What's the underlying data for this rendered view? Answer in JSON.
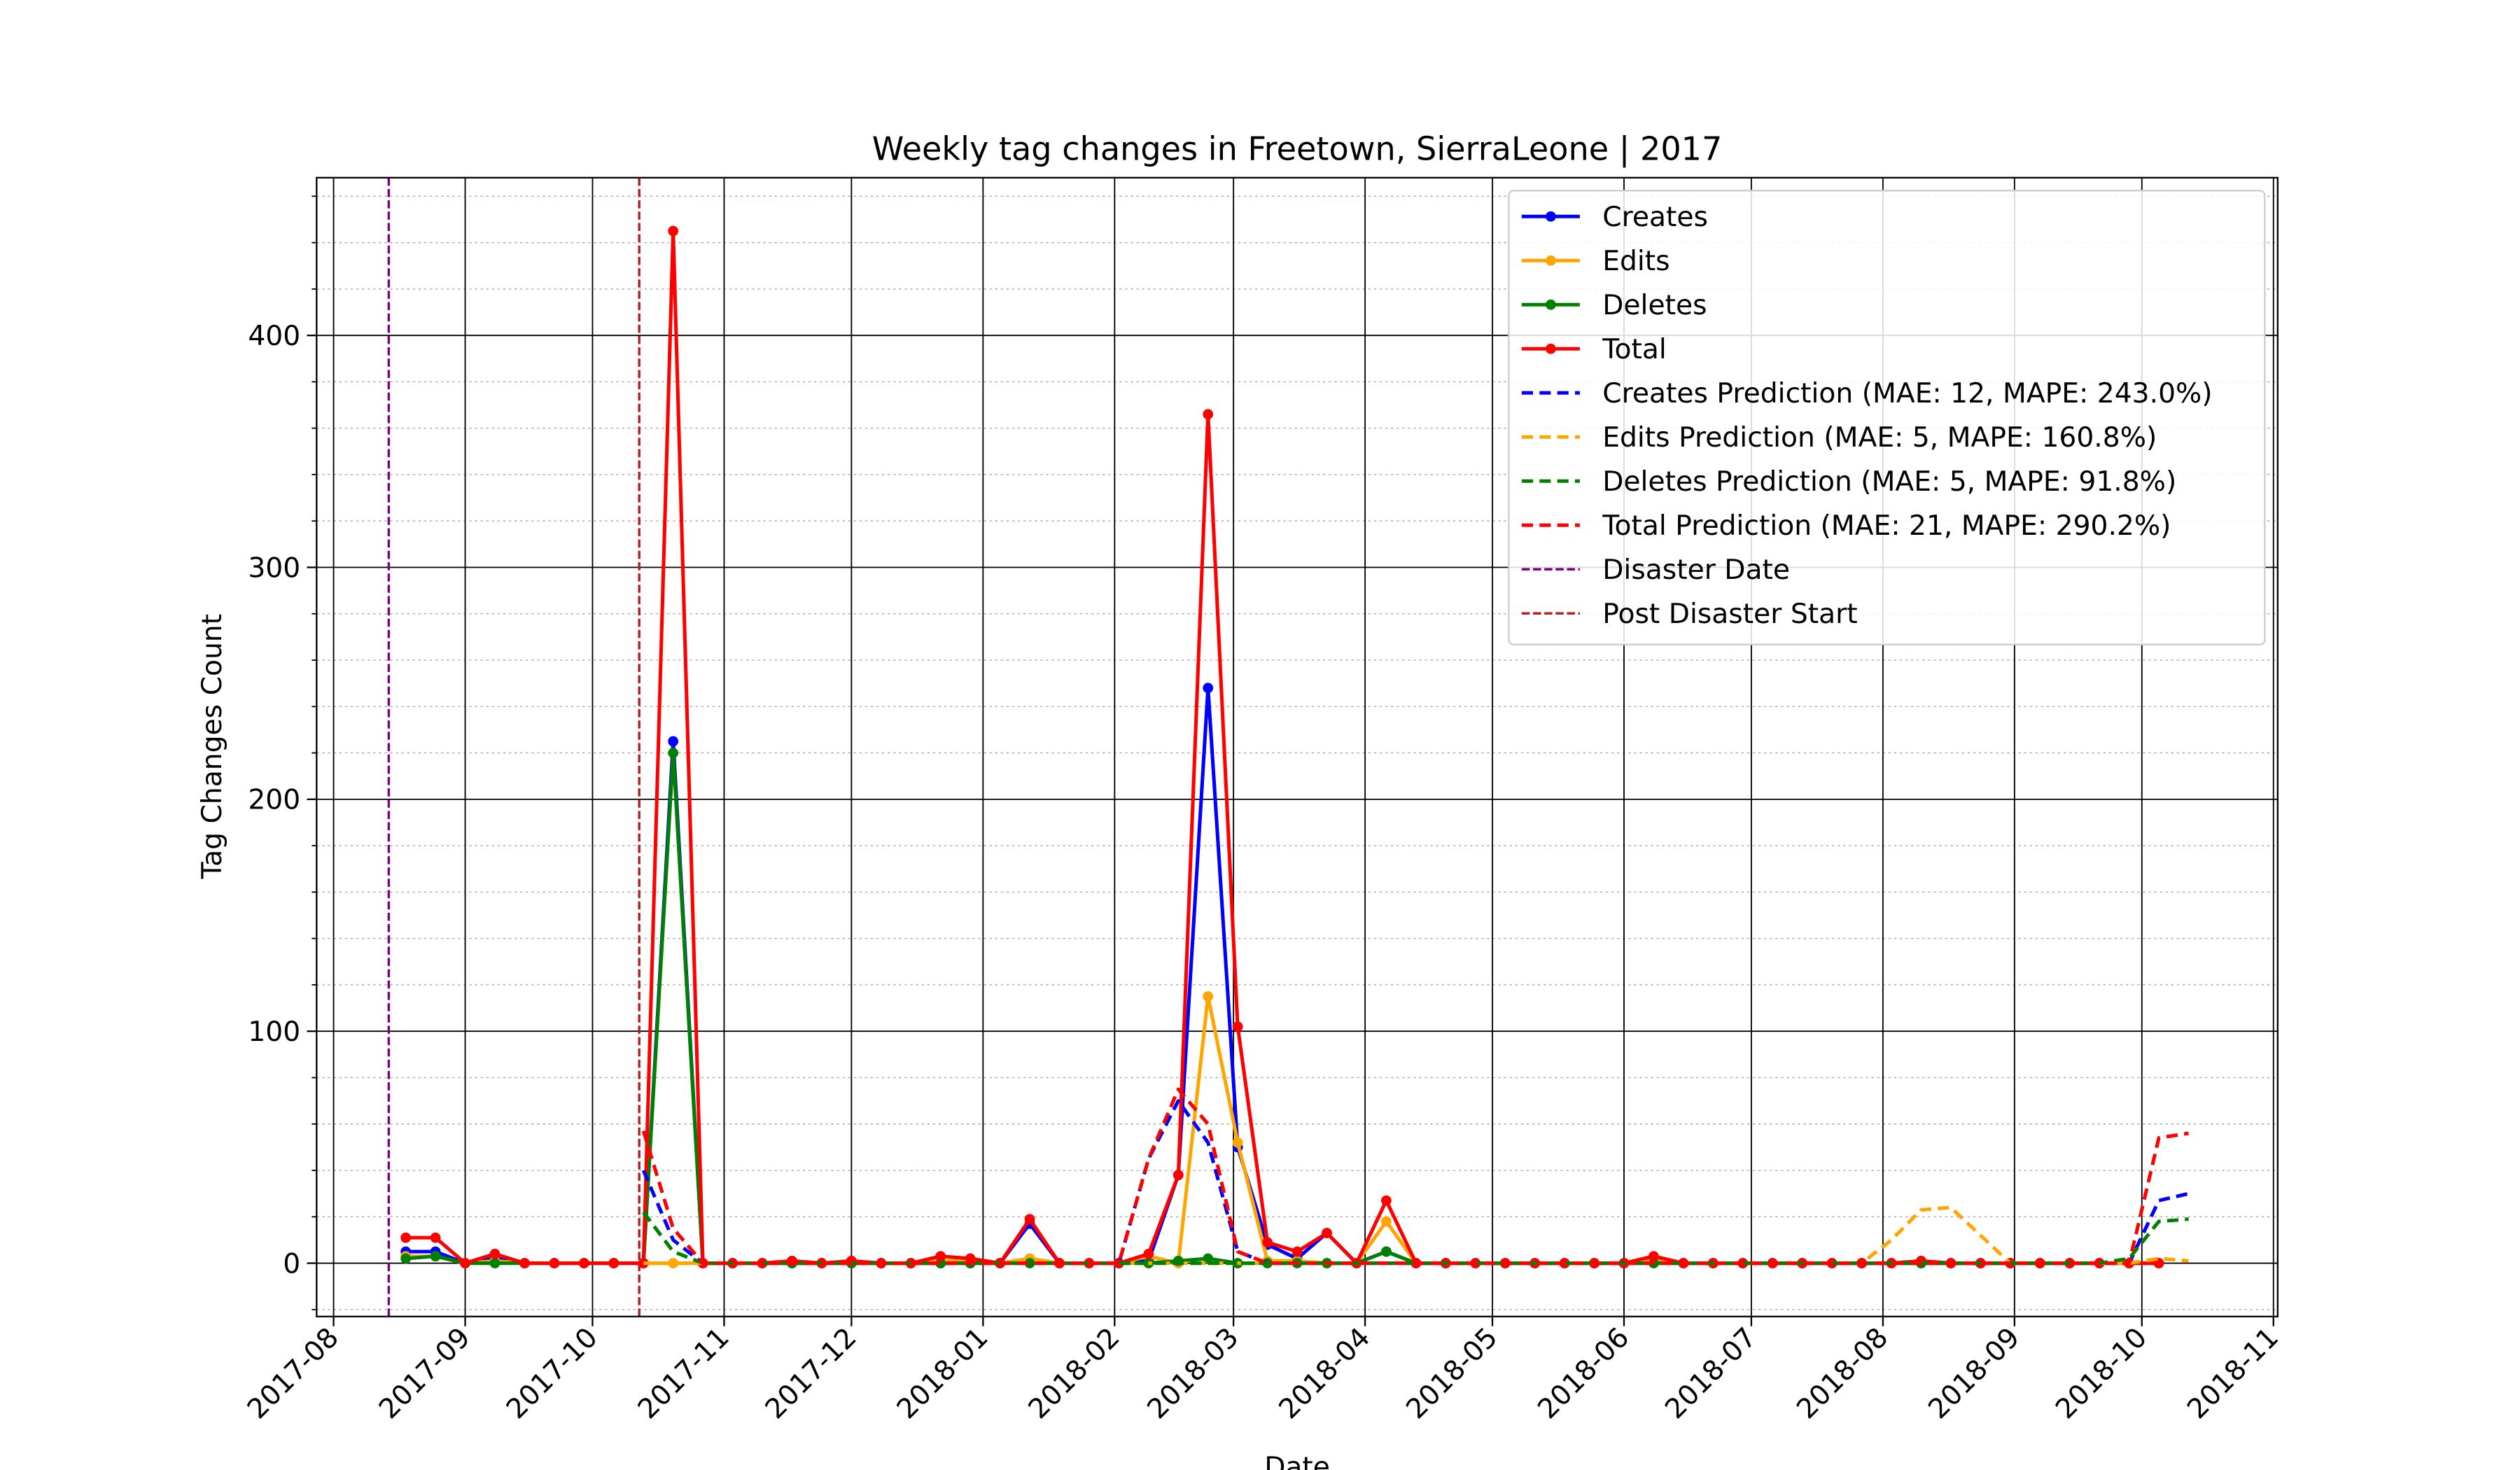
{
  "chart_data": {
    "type": "line",
    "title": "Weekly tag changes in Freetown, SierraLeone | 2017",
    "xlabel": "Date",
    "ylabel": "Tag Changes Count",
    "x": [
      "2017-08-18",
      "2017-08-25",
      "2017-09-01",
      "2017-09-08",
      "2017-09-15",
      "2017-09-22",
      "2017-09-29",
      "2017-10-06",
      "2017-10-13",
      "2017-10-20",
      "2017-10-27",
      "2017-11-03",
      "2017-11-10",
      "2017-11-17",
      "2017-11-24",
      "2017-12-01",
      "2017-12-08",
      "2017-12-15",
      "2017-12-22",
      "2017-12-29",
      "2018-01-05",
      "2018-01-12",
      "2018-01-19",
      "2018-01-26",
      "2018-02-02",
      "2018-02-09",
      "2018-02-16",
      "2018-02-23",
      "2018-03-02",
      "2018-03-09",
      "2018-03-16",
      "2018-03-23",
      "2018-03-30",
      "2018-04-06",
      "2018-04-13",
      "2018-04-20",
      "2018-04-27",
      "2018-05-04",
      "2018-05-11",
      "2018-05-18",
      "2018-05-25",
      "2018-06-01",
      "2018-06-08",
      "2018-06-15",
      "2018-06-22",
      "2018-06-29",
      "2018-07-06",
      "2018-07-13",
      "2018-07-20",
      "2018-07-27",
      "2018-08-03",
      "2018-08-10",
      "2018-08-17",
      "2018-08-24",
      "2018-08-31",
      "2018-09-07",
      "2018-09-14",
      "2018-09-21",
      "2018-09-28",
      "2018-10-05",
      "2018-10-12"
    ],
    "series": [
      {
        "name": "Creates",
        "color": "blue",
        "dashed": false,
        "marker": true,
        "values": [
          5,
          5,
          0,
          2,
          0,
          0,
          0,
          0,
          0,
          225,
          0,
          0,
          0,
          0,
          0,
          0,
          0,
          0,
          0,
          0,
          0,
          17,
          0,
          0,
          0,
          1,
          38,
          248,
          50,
          8,
          2,
          13,
          0,
          5,
          0,
          0,
          0,
          0,
          0,
          0,
          0,
          0,
          2,
          0,
          0,
          0,
          0,
          0,
          0,
          0,
          0,
          0,
          0,
          0,
          0,
          0,
          0,
          0,
          0,
          0,
          null
        ]
      },
      {
        "name": "Edits",
        "color": "orange",
        "dashed": false,
        "marker": true,
        "values": [
          3,
          3,
          0,
          1,
          0,
          0,
          0,
          0,
          0,
          0,
          0,
          0,
          0,
          0,
          0,
          0,
          0,
          0,
          1,
          1,
          0,
          2,
          0,
          0,
          0,
          3,
          0,
          115,
          52,
          1,
          1,
          0,
          0,
          18,
          0,
          0,
          0,
          0,
          0,
          0,
          0,
          0,
          1,
          0,
          0,
          0,
          0,
          0,
          0,
          0,
          0,
          0,
          0,
          0,
          0,
          0,
          0,
          0,
          0,
          0,
          null
        ]
      },
      {
        "name": "Deletes",
        "color": "green",
        "dashed": false,
        "marker": true,
        "values": [
          2,
          3,
          0,
          0,
          0,
          0,
          0,
          0,
          0,
          220,
          0,
          0,
          0,
          0,
          0,
          0,
          0,
          0,
          0,
          0,
          0,
          0,
          0,
          0,
          0,
          0,
          1,
          2,
          0,
          0,
          0,
          0,
          0,
          5,
          0,
          0,
          0,
          0,
          0,
          0,
          0,
          0,
          0,
          0,
          0,
          0,
          0,
          0,
          0,
          0,
          0,
          0,
          0,
          0,
          0,
          0,
          0,
          0,
          0,
          0,
          null
        ]
      },
      {
        "name": "Total",
        "color": "red",
        "dashed": false,
        "marker": true,
        "values": [
          11,
          11,
          0,
          4,
          0,
          0,
          0,
          0,
          0,
          445,
          0,
          0,
          0,
          1,
          0,
          1,
          0,
          0,
          3,
          2,
          0,
          19,
          0,
          0,
          0,
          4,
          38,
          366,
          102,
          9,
          5,
          13,
          0,
          27,
          0,
          0,
          0,
          0,
          0,
          0,
          0,
          0,
          3,
          0,
          0,
          0,
          0,
          0,
          0,
          0,
          0,
          1,
          0,
          0,
          0,
          0,
          0,
          0,
          0,
          0,
          null
        ]
      },
      {
        "name": "Creates Prediction (MAE: 12, MAPE: 243.0%)",
        "color": "blue",
        "dashed": true,
        "marker": false,
        "values": [
          null,
          null,
          null,
          null,
          null,
          null,
          null,
          null,
          40,
          10,
          0,
          0,
          0,
          0,
          0,
          0,
          0,
          0,
          0,
          0,
          0,
          0,
          0,
          0,
          0,
          45,
          70,
          52,
          5,
          0,
          0,
          0,
          0,
          0,
          0,
          0,
          0,
          0,
          0,
          0,
          0,
          0,
          0,
          0,
          0,
          0,
          0,
          0,
          0,
          0,
          0,
          0,
          0,
          0,
          0,
          0,
          0,
          0,
          0,
          27,
          30
        ]
      },
      {
        "name": "Edits Prediction (MAE: 5, MAPE: 160.8%)",
        "color": "orange",
        "dashed": true,
        "marker": false,
        "values": [
          null,
          null,
          null,
          null,
          null,
          null,
          null,
          null,
          0,
          0,
          0,
          0,
          0,
          0,
          0,
          0,
          0,
          0,
          0,
          0,
          0,
          0,
          0,
          0,
          0,
          0,
          0,
          0,
          0,
          0,
          0,
          0,
          0,
          0,
          0,
          0,
          0,
          0,
          0,
          0,
          0,
          0,
          0,
          0,
          0,
          0,
          0,
          0,
          0,
          0,
          10,
          23,
          24,
          12,
          0,
          0,
          0,
          0,
          0,
          2,
          1
        ]
      },
      {
        "name": "Deletes Prediction (MAE: 5, MAPE: 91.8%)",
        "color": "green",
        "dashed": true,
        "marker": false,
        "values": [
          null,
          null,
          null,
          null,
          null,
          null,
          null,
          null,
          22,
          5,
          0,
          0,
          0,
          0,
          0,
          0,
          0,
          0,
          0,
          0,
          0,
          0,
          0,
          0,
          0,
          0,
          0,
          0,
          0,
          0,
          0,
          0,
          0,
          0,
          0,
          0,
          0,
          0,
          0,
          0,
          0,
          0,
          0,
          0,
          0,
          0,
          0,
          0,
          0,
          0,
          0,
          0,
          0,
          0,
          0,
          0,
          0,
          0,
          2,
          18,
          19
        ]
      },
      {
        "name": "Total Prediction (MAE: 21, MAPE: 290.2%)",
        "color": "red",
        "dashed": true,
        "marker": false,
        "values": [
          null,
          null,
          null,
          null,
          null,
          null,
          null,
          null,
          57,
          15,
          0,
          0,
          0,
          0,
          0,
          0,
          0,
          0,
          0,
          0,
          0,
          0,
          0,
          0,
          0,
          45,
          75,
          60,
          5,
          0,
          0,
          0,
          0,
          0,
          0,
          0,
          0,
          0,
          0,
          0,
          0,
          0,
          0,
          0,
          0,
          0,
          0,
          0,
          0,
          0,
          0,
          0,
          0,
          0,
          0,
          0,
          0,
          0,
          0,
          54,
          56
        ]
      }
    ],
    "vlines": [
      {
        "name": "Disaster Date",
        "x": "2017-08-14",
        "color": "purple"
      },
      {
        "name": "Post Disaster Start",
        "x": "2017-10-12",
        "color": "#b22222"
      }
    ],
    "xlim": [
      "2017-07-28",
      "2018-11-02"
    ],
    "xticks": [
      {
        "value": "2017-08-01",
        "label": "2017-08"
      },
      {
        "value": "2017-09-01",
        "label": "2017-09"
      },
      {
        "value": "2017-10-01",
        "label": "2017-10"
      },
      {
        "value": "2017-11-01",
        "label": "2017-11"
      },
      {
        "value": "2017-12-01",
        "label": "2017-12"
      },
      {
        "value": "2018-01-01",
        "label": "2018-01"
      },
      {
        "value": "2018-02-01",
        "label": "2018-02"
      },
      {
        "value": "2018-03-01",
        "label": "2018-03"
      },
      {
        "value": "2018-04-01",
        "label": "2018-04"
      },
      {
        "value": "2018-05-01",
        "label": "2018-05"
      },
      {
        "value": "2018-06-01",
        "label": "2018-06"
      },
      {
        "value": "2018-07-01",
        "label": "2018-07"
      },
      {
        "value": "2018-08-01",
        "label": "2018-08"
      },
      {
        "value": "2018-09-01",
        "label": "2018-09"
      },
      {
        "value": "2018-10-01",
        "label": "2018-10"
      },
      {
        "value": "2018-11-01",
        "label": "2018-11"
      }
    ],
    "ylim": [
      -23,
      468
    ],
    "yticks": [
      0,
      100,
      200,
      300,
      400
    ],
    "yminorticks": [
      -20,
      20,
      40,
      60,
      80,
      120,
      140,
      160,
      180,
      220,
      240,
      260,
      280,
      320,
      340,
      360,
      380,
      420,
      440,
      460
    ],
    "grid": true,
    "legend": "upper right"
  }
}
